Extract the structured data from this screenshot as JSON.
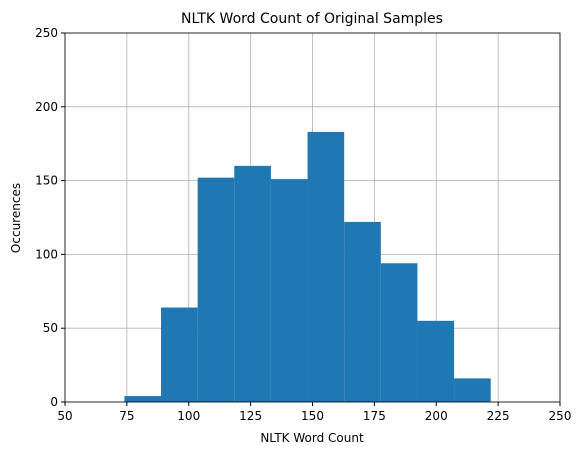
{
  "chart_data": {
    "type": "histogram",
    "title": "NLTK Word Count of Original Samples",
    "x_label": "NLTK Word Count",
    "y_label": "Occurences",
    "bins": [
      74,
      88.8,
      103.6,
      118.4,
      133.2,
      148,
      162.8,
      177.6,
      192.4,
      207.2,
      222
    ],
    "values": [
      4,
      64,
      152,
      160,
      151,
      183,
      122,
      94,
      55,
      16
    ],
    "color": "#1f77b4",
    "xlim": [
      50,
      250
    ],
    "xticks": [
      50,
      75,
      100,
      125,
      150,
      175,
      200,
      225,
      250
    ],
    "ylim": [
      0,
      250
    ],
    "yticks": [
      0,
      50,
      100,
      150,
      200,
      250
    ],
    "grid": true
  }
}
